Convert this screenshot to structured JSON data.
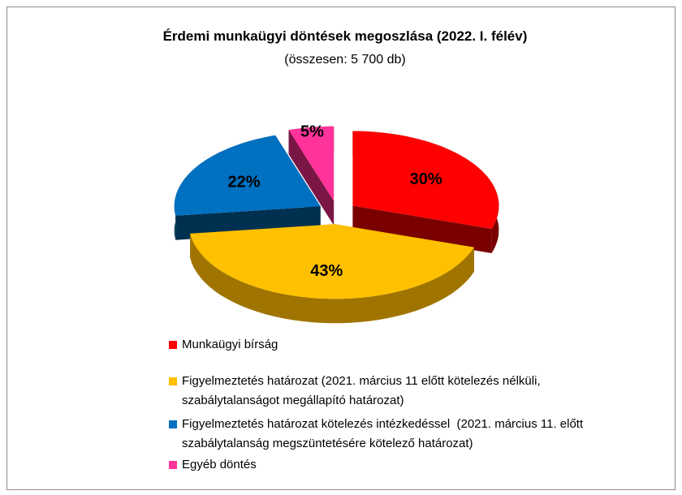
{
  "chart_data": {
    "type": "pie",
    "title": "Érdemi munkaügyi döntések megoszlása (2022. I. félév)",
    "subtitle": "(összesen: 5 700 db)",
    "categories": [
      "Munkaügyi bírság",
      "Figyelmeztetés határozat (2021. március 11 előtt kötelezés nélküli, szabálytalanságot megállapító határozat)",
      "Figyelmeztetés határozat kötelezés intézkedéssel  (2021. március 11. előtt szabálytalanság megszüntetésére kötelező határozat)",
      "Egyéb döntés"
    ],
    "values": [
      30,
      43,
      22,
      5
    ],
    "value_labels": [
      "30%",
      "43%",
      "22%",
      "5%"
    ],
    "colors": [
      "#ff0000",
      "#ffc000",
      "#0070c0",
      "#ff3399"
    ],
    "side_colors": [
      "#7a0000",
      "#a07400",
      "#00304f",
      "#7a1645"
    ]
  }
}
